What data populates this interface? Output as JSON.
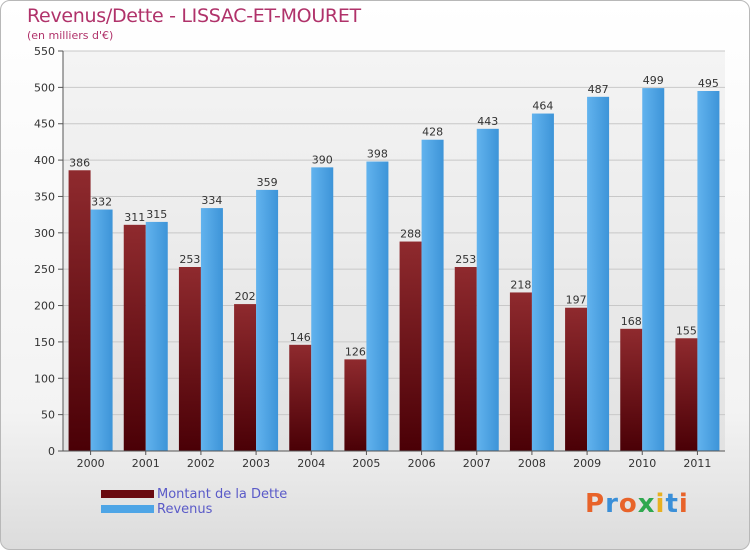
{
  "chart_data": {
    "type": "bar",
    "title": "Revenus/Dette - LISSAC-ET-MOURET",
    "subtitle": "(en milliers d'€)",
    "categories": [
      "2000",
      "2001",
      "2002",
      "2003",
      "2004",
      "2005",
      "2006",
      "2007",
      "2008",
      "2009",
      "2010",
      "2011"
    ],
    "series": [
      {
        "name": "Montant de la Dette",
        "color": "#7a0f14",
        "values": [
          386,
          311,
          253,
          202,
          146,
          126,
          288,
          253,
          218,
          197,
          168,
          155
        ]
      },
      {
        "name": "Revenus",
        "color": "#4ea5e6",
        "values": [
          332,
          315,
          334,
          359,
          390,
          398,
          428,
          443,
          464,
          487,
          499,
          495
        ]
      }
    ],
    "ylim": [
      0,
      550
    ],
    "yticks": [
      0,
      50,
      100,
      150,
      200,
      250,
      300,
      350,
      400,
      450,
      500,
      550
    ],
    "grid": true,
    "legend": "bottom-left"
  },
  "logo": {
    "text": "Proxiti",
    "colors": [
      "#e8632a",
      "#3a8fd8",
      "#e8632a",
      "#2fa84f",
      "#e8b020",
      "#3a8fd8",
      "#e8632a"
    ]
  }
}
